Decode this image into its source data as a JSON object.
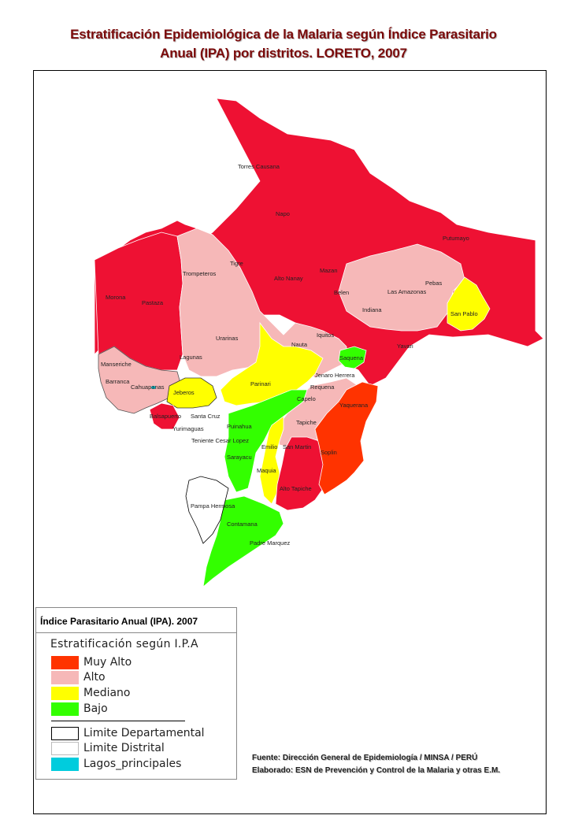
{
  "title_line1": "Estratificación Epidemiológica de la Malaria según Índice Parasitario",
  "title_line2": "Anual (IPA) por distritos. LORETO, 2007",
  "colors": {
    "muy_alto": "#ff3300",
    "alto": "#f6b8b8",
    "mediano": "#ffff00",
    "bajo": "#33ff00",
    "red_region": "#ee1133",
    "lagos": "#00ccdd"
  },
  "districts": [
    {
      "name": "Torres Causana"
    },
    {
      "name": "Napo"
    },
    {
      "name": "Putumayo"
    },
    {
      "name": "Tigre"
    },
    {
      "name": "Mazan"
    },
    {
      "name": "Trompeteros"
    },
    {
      "name": "Alto Nanay"
    },
    {
      "name": "Pebas"
    },
    {
      "name": "Belen"
    },
    {
      "name": "Las Amazonas"
    },
    {
      "name": "Morona"
    },
    {
      "name": "Pastaza"
    },
    {
      "name": "San Pablo"
    },
    {
      "name": "Indiana"
    },
    {
      "name": "Iquitos"
    },
    {
      "name": "Urarinas"
    },
    {
      "name": "Nauta"
    },
    {
      "name": "Yavari"
    },
    {
      "name": "Lagunas"
    },
    {
      "name": "Saquena"
    },
    {
      "name": "Manseriche"
    },
    {
      "name": "Jenaro Herrera"
    },
    {
      "name": "Barranca"
    },
    {
      "name": "Parinari"
    },
    {
      "name": "Cahuapanas"
    },
    {
      "name": "Jeberos"
    },
    {
      "name": "Requena"
    },
    {
      "name": "Capelo"
    },
    {
      "name": "Yaquerana"
    },
    {
      "name": "Balsapuerto"
    },
    {
      "name": "Santa Cruz"
    },
    {
      "name": "Puinahua"
    },
    {
      "name": "Tapiche"
    },
    {
      "name": "Yurimaguas"
    },
    {
      "name": "Teniente Cesar Lopez"
    },
    {
      "name": "Emilio"
    },
    {
      "name": "San Martin"
    },
    {
      "name": "Soplin"
    },
    {
      "name": "Sarayacu"
    },
    {
      "name": "Maquia"
    },
    {
      "name": "Alto Tapiche"
    },
    {
      "name": "Pampa Hermosa"
    },
    {
      "name": "Contamana"
    },
    {
      "name": "Padre Marquez"
    }
  ],
  "legend": {
    "title": "Índice Parasitario Anual (IPA). 2007",
    "subtitle": "Estratificación según I.P.A",
    "items": [
      {
        "label": "Muy Alto",
        "color": "#ff3300"
      },
      {
        "label": "Alto",
        "color": "#f6b8b8"
      },
      {
        "label": "Mediano",
        "color": "#ffff00"
      },
      {
        "label": "Bajo",
        "color": "#33ff00"
      }
    ],
    "boundaries": [
      {
        "label": "Limite Departamental",
        "color": "#ffffff",
        "border": "#000000"
      },
      {
        "label": "Limite Distrital",
        "color": "#ffffff",
        "border": "#bbbbbb"
      },
      {
        "label": "Lagos_principales",
        "color": "#00ccdd",
        "border": "#00ccdd"
      }
    ]
  },
  "source_line1": "Fuente: Dirección General de Epidemiología / MINSA / PERÚ",
  "source_line2": "Elaborado: ESN de Prevención y Control de la Malaria y otras E.M."
}
